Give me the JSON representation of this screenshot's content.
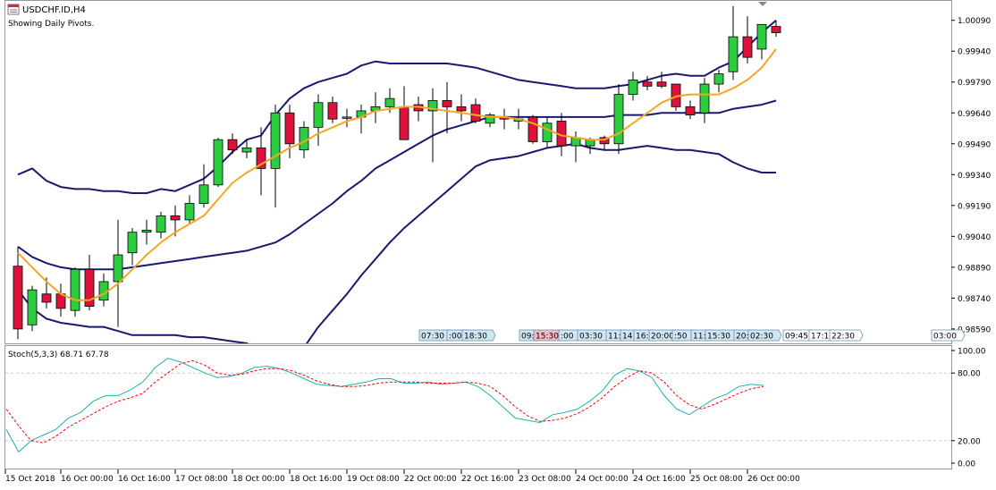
{
  "window": {
    "title": "USDCHF.ID,H4",
    "subtitle": "Showing Daily Pivots."
  },
  "colors": {
    "bull": "#2ecc40",
    "bear": "#dc143c",
    "bollinger": "#191970",
    "ma": "#f5a623",
    "stoch_main": "#20b2aa",
    "stoch_signal": "#ff0000",
    "tag_blue": "#cfe7f5",
    "tag_red": "#f6b9c4",
    "grid": "#c8c8c8"
  },
  "main_axis_labels": [
    "1.00090",
    "0.99940",
    "0.99790",
    "0.99640",
    "0.99490",
    "0.99340",
    "0.99190",
    "0.99040",
    "0.98890",
    "0.98740",
    "0.98590"
  ],
  "stoch_axis_labels": [
    "100.00",
    "80.00",
    "20.00",
    "0.00"
  ],
  "time_labels": [
    "15 Oct 2018",
    "16 Oct 00:00",
    "16 Oct 16:00",
    "17 Oct 08:00",
    "18 Oct 00:00",
    "18 Oct 16:00",
    "19 Oct 08:00",
    "22 Oct 00:00",
    "22 Oct 16:00",
    "23 Oct 08:00",
    "24 Oct 00:00",
    "24 Oct 16:00",
    "25 Oct 08:00",
    "26 Oct 00:00"
  ],
  "session_tags": [
    {
      "text": "07:30",
      "color": "blue"
    },
    {
      "text": ":00",
      "color": "blue"
    },
    {
      "text": "18:30",
      "color": "blue"
    },
    {
      "text": "09:",
      "color": "blue"
    },
    {
      "text": "15:30",
      "color": "red"
    },
    {
      "text": ":00",
      "color": "blue"
    },
    {
      "text": "03:30",
      "color": "blue"
    },
    {
      "text": "11:",
      "color": "blue"
    },
    {
      "text": "14:",
      "color": "blue"
    },
    {
      "text": "16:",
      "color": "blue"
    },
    {
      "text": "20:00",
      "color": "blue"
    },
    {
      "text": ":50",
      "color": "blue"
    },
    {
      "text": "11:",
      "color": "blue"
    },
    {
      "text": "15:30",
      "color": "blue"
    },
    {
      "text": "20:",
      "color": "blue"
    },
    {
      "text": "02:30",
      "color": "blue"
    },
    {
      "text": "09:45",
      "color": "white"
    },
    {
      "text": "17:1",
      "color": "white"
    },
    {
      "text": "22:30",
      "color": "white"
    },
    {
      "text": "03:00",
      "color": "white"
    }
  ],
  "chart_data": [
    {
      "type": "candlestick",
      "title": "USDCHF.ID,H4",
      "ylim": [
        0.9852,
        1.0018
      ],
      "grid": false,
      "candles": [
        {
          "o": 0.98895,
          "h": 0.9899,
          "l": 0.9854,
          "c": 0.9859
        },
        {
          "o": 0.9861,
          "h": 0.988,
          "l": 0.9858,
          "c": 0.9878
        },
        {
          "o": 0.9876,
          "h": 0.9884,
          "l": 0.9869,
          "c": 0.9872
        },
        {
          "o": 0.9876,
          "h": 0.9881,
          "l": 0.9865,
          "c": 0.9869
        },
        {
          "o": 0.9868,
          "h": 0.9889,
          "l": 0.9865,
          "c": 0.9888
        },
        {
          "o": 0.9888,
          "h": 0.9895,
          "l": 0.9868,
          "c": 0.987
        },
        {
          "o": 0.9873,
          "h": 0.9886,
          "l": 0.987,
          "c": 0.9882
        },
        {
          "o": 0.9882,
          "h": 0.9912,
          "l": 0.986,
          "c": 0.9895
        },
        {
          "o": 0.9896,
          "h": 0.9908,
          "l": 0.989,
          "c": 0.9906
        },
        {
          "o": 0.9906,
          "h": 0.9912,
          "l": 0.99,
          "c": 0.9907
        },
        {
          "o": 0.9906,
          "h": 0.9916,
          "l": 0.9903,
          "c": 0.9914
        },
        {
          "o": 0.9914,
          "h": 0.9919,
          "l": 0.9904,
          "c": 0.9912
        },
        {
          "o": 0.9912,
          "h": 0.9924,
          "l": 0.991,
          "c": 0.992
        },
        {
          "o": 0.992,
          "h": 0.9939,
          "l": 0.9918,
          "c": 0.9929
        },
        {
          "o": 0.9929,
          "h": 0.9952,
          "l": 0.9928,
          "c": 0.9951
        },
        {
          "o": 0.9951,
          "h": 0.9954,
          "l": 0.9944,
          "c": 0.9946
        },
        {
          "o": 0.9945,
          "h": 0.9951,
          "l": 0.9942,
          "c": 0.9947
        },
        {
          "o": 0.9947,
          "h": 0.9957,
          "l": 0.9924,
          "c": 0.9937
        },
        {
          "o": 0.9937,
          "h": 0.9968,
          "l": 0.9918,
          "c": 0.9964
        },
        {
          "o": 0.9964,
          "h": 0.9968,
          "l": 0.9942,
          "c": 0.9949
        },
        {
          "o": 0.9946,
          "h": 0.996,
          "l": 0.9942,
          "c": 0.9957
        },
        {
          "o": 0.9957,
          "h": 0.9973,
          "l": 0.9948,
          "c": 0.9969
        },
        {
          "o": 0.9969,
          "h": 0.9972,
          "l": 0.9959,
          "c": 0.9961
        },
        {
          "o": 0.9962,
          "h": 0.9966,
          "l": 0.9957,
          "c": 0.9962
        },
        {
          "o": 0.9962,
          "h": 0.9968,
          "l": 0.9954,
          "c": 0.9965
        },
        {
          "o": 0.9965,
          "h": 0.9974,
          "l": 0.9959,
          "c": 0.9967
        },
        {
          "o": 0.9967,
          "h": 0.9976,
          "l": 0.9964,
          "c": 0.9971
        },
        {
          "o": 0.9967,
          "h": 0.9977,
          "l": 0.9952,
          "c": 0.9951
        },
        {
          "o": 0.9968,
          "h": 0.9972,
          "l": 0.996,
          "c": 0.9965
        },
        {
          "o": 0.9965,
          "h": 0.9976,
          "l": 0.994,
          "c": 0.997
        },
        {
          "o": 0.997,
          "h": 0.9979,
          "l": 0.9954,
          "c": 0.9967
        },
        {
          "o": 0.9967,
          "h": 0.9973,
          "l": 0.996,
          "c": 0.9965
        },
        {
          "o": 0.9968,
          "h": 0.9971,
          "l": 0.9959,
          "c": 0.996
        },
        {
          "o": 0.9959,
          "h": 0.9964,
          "l": 0.9957,
          "c": 0.9963
        },
        {
          "o": 0.9962,
          "h": 0.9966,
          "l": 0.9956,
          "c": 0.9961
        },
        {
          "o": 0.996,
          "h": 0.9966,
          "l": 0.9956,
          "c": 0.9961
        },
        {
          "o": 0.9962,
          "h": 0.9963,
          "l": 0.9949,
          "c": 0.995
        },
        {
          "o": 0.995,
          "h": 0.9962,
          "l": 0.9947,
          "c": 0.9959
        },
        {
          "o": 0.996,
          "h": 0.9964,
          "l": 0.9943,
          "c": 0.9948
        },
        {
          "o": 0.9948,
          "h": 0.9955,
          "l": 0.994,
          "c": 0.9952
        },
        {
          "o": 0.9948,
          "h": 0.9952,
          "l": 0.9944,
          "c": 0.9951
        },
        {
          "o": 0.9952,
          "h": 0.9953,
          "l": 0.9946,
          "c": 0.9949
        },
        {
          "o": 0.9949,
          "h": 0.9978,
          "l": 0.9944,
          "c": 0.9973
        },
        {
          "o": 0.9973,
          "h": 0.9984,
          "l": 0.997,
          "c": 0.998
        },
        {
          "o": 0.9979,
          "h": 0.9982,
          "l": 0.9975,
          "c": 0.9977
        },
        {
          "o": 0.9979,
          "h": 0.9984,
          "l": 0.9976,
          "c": 0.9977
        },
        {
          "o": 0.9978,
          "h": 0.9978,
          "l": 0.9965,
          "c": 0.9967
        },
        {
          "o": 0.9967,
          "h": 0.997,
          "l": 0.9961,
          "c": 0.9963
        },
        {
          "o": 0.9964,
          "h": 0.9981,
          "l": 0.9959,
          "c": 0.9978
        },
        {
          "o": 0.9978,
          "h": 0.9985,
          "l": 0.9974,
          "c": 0.9983
        },
        {
          "o": 0.9984,
          "h": 1.0016,
          "l": 0.998,
          "c": 1.0001
        },
        {
          "o": 1.0001,
          "h": 1.0011,
          "l": 0.9988,
          "c": 0.9991
        },
        {
          "o": 0.9995,
          "h": 1.0007,
          "l": 0.999,
          "c": 1.0007
        },
        {
          "o": 1.0006,
          "h": 1.0009,
          "l": 1.0001,
          "c": 1.0003
        }
      ],
      "ma": [
        0.9896,
        0.9889,
        0.9882,
        0.9876,
        0.9873,
        0.9873,
        0.9876,
        0.9881,
        0.9888,
        0.9895,
        0.9901,
        0.9906,
        0.991,
        0.9914,
        0.9922,
        0.993,
        0.9935,
        0.9939,
        0.9943,
        0.9947,
        0.995,
        0.9954,
        0.9957,
        0.996,
        0.9962,
        0.9965,
        0.9966,
        0.9967,
        0.9967,
        0.9966,
        0.9965,
        0.9964,
        0.9963,
        0.9962,
        0.9962,
        0.9961,
        0.9959,
        0.9956,
        0.9953,
        0.9952,
        0.9951,
        0.9951,
        0.9954,
        0.9959,
        0.9964,
        0.9969,
        0.9972,
        0.9973,
        0.9973,
        0.9973,
        0.9976,
        0.998,
        0.9986,
        0.9995
      ],
      "bb_upper": [
        0.9934,
        0.9937,
        0.9931,
        0.9928,
        0.9927,
        0.9927,
        0.9926,
        0.9926,
        0.9925,
        0.9925,
        0.9927,
        0.9926,
        0.9929,
        0.9932,
        0.9938,
        0.9945,
        0.9951,
        0.9953,
        0.9963,
        0.9971,
        0.9976,
        0.9979,
        0.9981,
        0.9983,
        0.9987,
        0.9989,
        0.9988,
        0.9988,
        0.9988,
        0.9988,
        0.9988,
        0.9987,
        0.9986,
        0.9984,
        0.9982,
        0.998,
        0.9979,
        0.9978,
        0.9977,
        0.9976,
        0.9976,
        0.9976,
        0.9977,
        0.9978,
        0.998,
        0.9982,
        0.9983,
        0.9982,
        0.9982,
        0.9986,
        0.9989,
        0.9996,
        1.0003,
        1.0009
      ],
      "bb_middle": [
        0.9899,
        0.9894,
        0.9891,
        0.9889,
        0.9888,
        0.9888,
        0.9888,
        0.9888,
        0.9889,
        0.989,
        0.9891,
        0.9892,
        0.9893,
        0.9894,
        0.9895,
        0.9896,
        0.9897,
        0.9899,
        0.9901,
        0.9905,
        0.991,
        0.9915,
        0.992,
        0.9926,
        0.9931,
        0.9937,
        0.9941,
        0.9945,
        0.9949,
        0.9953,
        0.9956,
        0.9958,
        0.996,
        0.9962,
        0.9962,
        0.9962,
        0.9962,
        0.9962,
        0.9962,
        0.9962,
        0.9962,
        0.9962,
        0.9963,
        0.9963,
        0.9963,
        0.9964,
        0.9964,
        0.9964,
        0.9964,
        0.9964,
        0.9966,
        0.9967,
        0.9968,
        0.997
      ],
      "bb_lower": [
        0.9878,
        0.9869,
        0.9864,
        0.9862,
        0.9861,
        0.986,
        0.986,
        0.9858,
        0.9856,
        0.9856,
        0.9856,
        0.9856,
        0.9855,
        0.9855,
        0.9854,
        0.9853,
        0.9852,
        0.9848,
        0.9843,
        0.9843,
        0.985,
        0.986,
        0.9868,
        0.9876,
        0.9885,
        0.9893,
        0.9901,
        0.9908,
        0.9914,
        0.992,
        0.9926,
        0.9932,
        0.9938,
        0.9941,
        0.9942,
        0.9943,
        0.9945,
        0.9947,
        0.9948,
        0.9949,
        0.9947,
        0.9946,
        0.9946,
        0.9947,
        0.9948,
        0.9947,
        0.9946,
        0.9946,
        0.9945,
        0.9944,
        0.994,
        0.9937,
        0.9935,
        0.9935
      ]
    },
    {
      "type": "line",
      "title": "Stoch(5,3,3) 68.71 67.78",
      "ylim": [
        0,
        100
      ],
      "levels": [
        20,
        80
      ],
      "series": [
        {
          "name": "main",
          "values": [
            30,
            10,
            20,
            25,
            30,
            40,
            45,
            55,
            60,
            60,
            65,
            72,
            85,
            93,
            90,
            85,
            80,
            76,
            77,
            80,
            85,
            86,
            84,
            80,
            75,
            70,
            69,
            68,
            70,
            72,
            75,
            75,
            71,
            71,
            72,
            70,
            71,
            72,
            68,
            60,
            50,
            40,
            38,
            36,
            43,
            45,
            48,
            55,
            64,
            78,
            84,
            82,
            76,
            60,
            48,
            43,
            50,
            57,
            61,
            68,
            70,
            69
          ]
        },
        {
          "name": "signal",
          "values": [
            48,
            33,
            20,
            18,
            24,
            32,
            38,
            44,
            50,
            55,
            58,
            62,
            72,
            80,
            88,
            91,
            87,
            80,
            78,
            79,
            82,
            84,
            84,
            82,
            78,
            73,
            70,
            68,
            68,
            69,
            71,
            72,
            72,
            72,
            71,
            71,
            71,
            72,
            71,
            68,
            60,
            50,
            42,
            37,
            38,
            40,
            44,
            50,
            58,
            68,
            76,
            82,
            80,
            72,
            60,
            52,
            48,
            52,
            57,
            62,
            66,
            68
          ]
        }
      ]
    }
  ]
}
